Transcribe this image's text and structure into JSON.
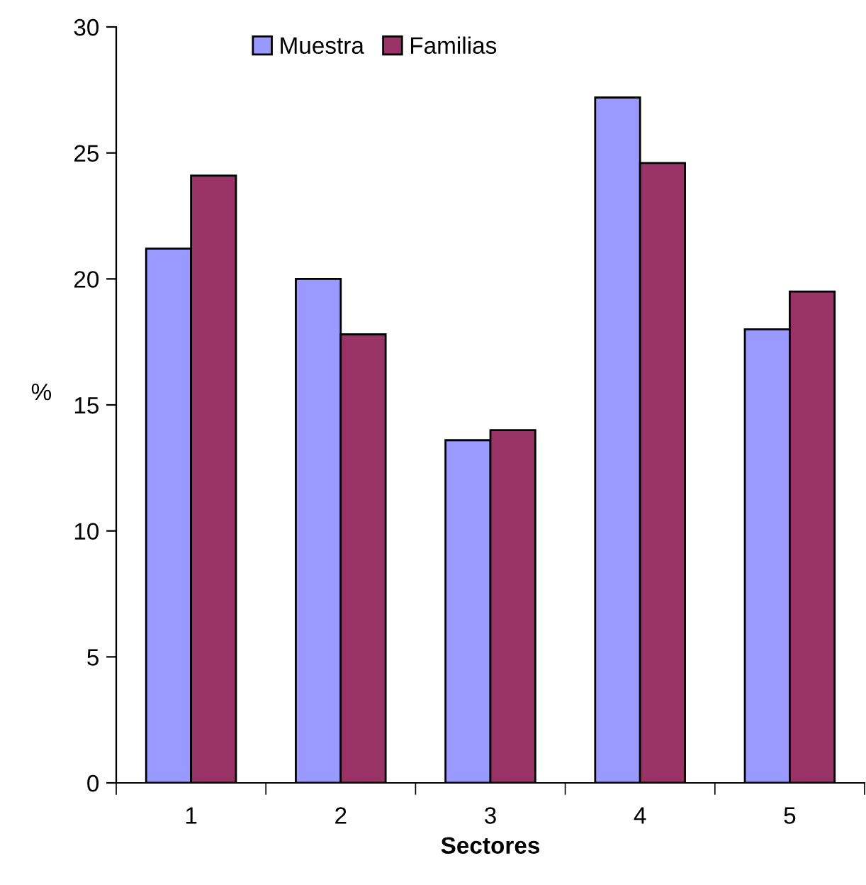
{
  "chart_data": {
    "type": "bar",
    "xlabel": "Sectores",
    "ylabel": "%",
    "categories": [
      "1",
      "2",
      "3",
      "4",
      "5"
    ],
    "series": [
      {
        "name": "Muestra",
        "color": "#9999ff",
        "values": [
          21.2,
          20.0,
          13.6,
          27.2,
          18.0
        ]
      },
      {
        "name": "Familias",
        "color": "#993366",
        "values": [
          24.1,
          17.8,
          14.0,
          24.6,
          19.5
        ]
      }
    ],
    "ylim": [
      0,
      30
    ],
    "yticks": [
      0,
      5,
      10,
      15,
      20,
      25,
      30
    ],
    "grid": false,
    "legend": "top left"
  }
}
